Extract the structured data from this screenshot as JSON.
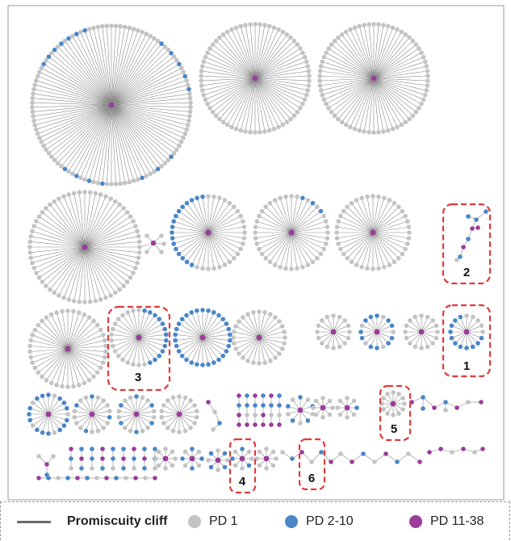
{
  "labels": [
    "1",
    "2",
    "3",
    "4",
    "5",
    "6"
  ],
  "legend": {
    "edge": "Promiscuity cliff",
    "pd1": "PD 1",
    "pd2": "PD 2-10",
    "pd3": "PD 11-38"
  },
  "colors": {
    "pd1": "#c3c3c3",
    "pd2": "#4a86c8",
    "pd3": "#9a3c9c",
    "edge": "#8a8a8a",
    "highlight": "#e03a3a",
    "frame": "#999999"
  }
}
